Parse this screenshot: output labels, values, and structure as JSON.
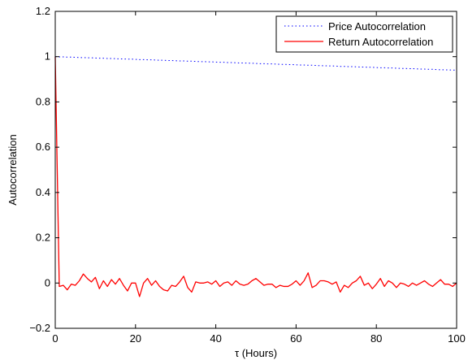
{
  "chart_data": {
    "type": "line",
    "xlabel": "τ (Hours)",
    "ylabel": "Autocorrelation",
    "xlim": [
      0,
      100
    ],
    "ylim": [
      -0.2,
      1.2
    ],
    "grid": false,
    "legend_position": "top-right",
    "xticks": [
      0,
      20,
      40,
      60,
      80,
      100
    ],
    "xtick_labels": [
      "0",
      "20",
      "40",
      "60",
      "80",
      "100"
    ],
    "yticks": [
      -0.2,
      0,
      0.2,
      0.4,
      0.6,
      0.8,
      1,
      1.2
    ],
    "ytick_labels": [
      "−0.2",
      "0",
      "0.2",
      "0.4",
      "0.6",
      "0.8",
      "1",
      "1.2"
    ],
    "series": [
      {
        "name": "Price Autocorrelation",
        "color": "#0000ff",
        "line_style": "dotted",
        "x_start": 0,
        "x_step": 1,
        "values": [
          1.0,
          0.999,
          0.999,
          0.998,
          0.998,
          0.997,
          0.996,
          0.996,
          0.995,
          0.995,
          0.994,
          0.993,
          0.993,
          0.992,
          0.992,
          0.991,
          0.99,
          0.99,
          0.989,
          0.989,
          0.988,
          0.987,
          0.987,
          0.986,
          0.986,
          0.985,
          0.984,
          0.984,
          0.983,
          0.983,
          0.982,
          0.981,
          0.981,
          0.98,
          0.98,
          0.979,
          0.978,
          0.978,
          0.977,
          0.977,
          0.976,
          0.975,
          0.975,
          0.974,
          0.974,
          0.973,
          0.972,
          0.972,
          0.971,
          0.971,
          0.97,
          0.969,
          0.969,
          0.968,
          0.968,
          0.967,
          0.966,
          0.966,
          0.965,
          0.965,
          0.964,
          0.963,
          0.963,
          0.962,
          0.962,
          0.961,
          0.96,
          0.96,
          0.959,
          0.959,
          0.958,
          0.957,
          0.957,
          0.956,
          0.956,
          0.955,
          0.954,
          0.954,
          0.953,
          0.953,
          0.952,
          0.951,
          0.951,
          0.95,
          0.95,
          0.949,
          0.948,
          0.948,
          0.947,
          0.947,
          0.946,
          0.945,
          0.945,
          0.944,
          0.944,
          0.943,
          0.942,
          0.942,
          0.941,
          0.941,
          0.94
        ]
      },
      {
        "name": "Return Autocorrelation",
        "color": "#ff0000",
        "line_style": "solid",
        "x_start": 0,
        "x_step": 1,
        "values": [
          1.0,
          -0.015,
          -0.01,
          -0.03,
          -0.005,
          -0.01,
          0.01,
          0.04,
          0.02,
          0.005,
          0.025,
          -0.025,
          0.01,
          -0.015,
          0.015,
          -0.005,
          0.02,
          -0.01,
          -0.035,
          0.0,
          0.0,
          -0.06,
          0.0,
          0.02,
          -0.01,
          0.01,
          -0.015,
          -0.03,
          -0.035,
          -0.01,
          -0.015,
          0.005,
          0.03,
          -0.02,
          -0.04,
          0.005,
          0.0,
          0.0,
          0.005,
          -0.005,
          0.01,
          -0.015,
          0.0,
          0.005,
          -0.01,
          0.01,
          -0.005,
          -0.01,
          -0.005,
          0.01,
          0.02,
          0.005,
          -0.01,
          -0.005,
          -0.005,
          -0.02,
          -0.01,
          -0.015,
          -0.015,
          -0.005,
          0.01,
          -0.01,
          0.01,
          0.045,
          -0.02,
          -0.01,
          0.01,
          0.01,
          0.005,
          -0.005,
          0.005,
          -0.04,
          -0.01,
          -0.02,
          0.0,
          0.01,
          0.03,
          -0.01,
          0.0,
          -0.025,
          -0.005,
          0.02,
          -0.015,
          0.01,
          0.0,
          -0.02,
          0.0,
          -0.005,
          -0.015,
          0.0,
          -0.01,
          0.0,
          0.01,
          -0.005,
          -0.015,
          0.0,
          0.015,
          -0.005,
          -0.005,
          -0.015,
          0.0
        ]
      }
    ]
  }
}
